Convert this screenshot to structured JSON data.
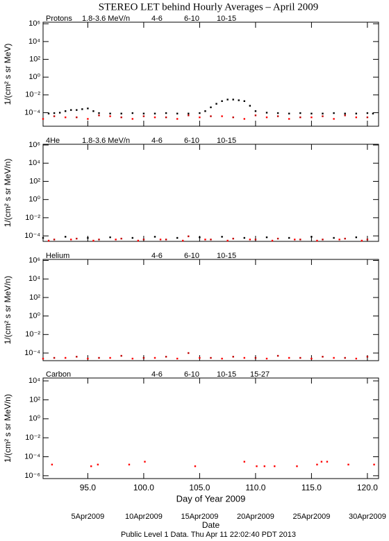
{
  "title": "STEREO LET behind Hourly Averages – April 2009",
  "footer": "Public Level 1 Data. Thu Apr 11 22:02:40 PDT 2013",
  "chart_data": [
    {
      "type": "scatter",
      "label": "Protons",
      "ylabel": "1/(cm² s sr MeV)",
      "log_y": true,
      "xlim": [
        91,
        121
      ],
      "ylim": [
        3e-06,
        1500000.0
      ],
      "yticks": [
        {
          "value": 1000000.0,
          "label": "10⁶"
        },
        {
          "value": 10000.0,
          "label": "10⁴"
        },
        {
          "value": 100,
          "label": "10²"
        },
        {
          "value": 1,
          "label": "10⁰"
        },
        {
          "value": 0.01,
          "label": "10⁻²"
        },
        {
          "value": 0.0001,
          "label": "10⁻⁴"
        }
      ],
      "series": [
        {
          "name": "1.8-3.6 MeV/n",
          "color": "#000000",
          "x": [
            91.5,
            92,
            92.5,
            93,
            93.5,
            94,
            94.5,
            95,
            95.5,
            96,
            97,
            98,
            99,
            100,
            101,
            102,
            103,
            104,
            105,
            105.5,
            106,
            106.5,
            107,
            107.5,
            108,
            108.5,
            109,
            109.5,
            110,
            111,
            112,
            113,
            114,
            115,
            116,
            117,
            118,
            119,
            120,
            120.5
          ],
          "values": [
            8e-05,
            9e-05,
            0.0001,
            0.00015,
            0.0002,
            0.0002,
            0.00025,
            0.0003,
            0.00015,
            9e-05,
            8e-05,
            8e-05,
            9e-05,
            8e-05,
            8e-05,
            9e-05,
            8e-05,
            8e-05,
            9e-05,
            0.00015,
            0.0004,
            0.001,
            0.002,
            0.003,
            0.003,
            0.0025,
            0.002,
            0.0006,
            0.00015,
            0.0001,
            9e-05,
            8e-05,
            9e-05,
            8e-05,
            8e-05,
            9e-05,
            8e-05,
            8e-05,
            9e-05,
            8e-05
          ]
        },
        {
          "name": "4-6",
          "color": "#c00000",
          "x": [
            92,
            94,
            96,
            98,
            100,
            102,
            104,
            106,
            108,
            110,
            112,
            114,
            116,
            118,
            120
          ],
          "values": [
            4e-05,
            3e-05,
            5e-05,
            3e-05,
            4e-05,
            3e-05,
            5e-05,
            4e-05,
            3e-05,
            5e-05,
            4e-05,
            3e-05,
            4e-05,
            5e-05,
            3e-05
          ]
        },
        {
          "name": "6-10",
          "color": "#ff0000",
          "x": [
            91,
            93,
            95,
            97,
            99,
            101,
            103,
            105,
            107,
            109,
            111,
            113,
            115,
            117,
            119
          ],
          "values": [
            2e-05,
            3e-05,
            2e-05,
            4e-05,
            2e-05,
            3e-05,
            2e-05,
            3e-05,
            4e-05,
            2e-05,
            3e-05,
            2e-05,
            3e-05,
            2e-05,
            3e-05
          ]
        },
        {
          "name": "10-15",
          "color": "#999999",
          "x": [],
          "values": []
        }
      ]
    },
    {
      "type": "scatter",
      "label": "4He",
      "ylabel": "1/(cm² s sr MeV/n)",
      "log_y": true,
      "xlim": [
        91,
        121
      ],
      "ylim": [
        2.5e-05,
        1200000.0
      ],
      "yticks": [
        {
          "value": 1000000.0,
          "label": "10⁶"
        },
        {
          "value": 10000.0,
          "label": "10⁴"
        },
        {
          "value": 100,
          "label": "10²"
        },
        {
          "value": 1,
          "label": "10⁰"
        },
        {
          "value": 0.01,
          "label": "10⁻²"
        },
        {
          "value": 0.0001,
          "label": "10⁻⁴"
        }
      ],
      "series": [
        {
          "name": "1.8-3.6 MeV/n",
          "color": "#000000",
          "x": [
            91,
            93,
            95,
            97,
            99,
            101,
            103,
            105,
            107,
            109,
            111,
            113,
            115,
            117,
            119
          ],
          "values": [
            6e-05,
            8e-05,
            6e-05,
            7e-05,
            6e-05,
            8e-05,
            6e-05,
            7e-05,
            8e-05,
            6e-05,
            7e-05,
            6e-05,
            8e-05,
            6e-05,
            7e-05
          ]
        },
        {
          "name": "4-6",
          "color": "#c00000",
          "x": [
            92,
            94,
            96,
            98,
            100,
            102,
            104,
            106,
            108,
            110,
            112,
            114,
            116,
            118,
            120
          ],
          "values": [
            4e-05,
            5e-05,
            4e-05,
            5e-05,
            4e-05,
            4e-05,
            9e-05,
            4e-05,
            5e-05,
            4e-05,
            5e-05,
            4e-05,
            4e-05,
            5e-05,
            4e-05
          ]
        },
        {
          "name": "6-10",
          "color": "#ff0000",
          "x": [
            91.5,
            93.5,
            95.5,
            97.5,
            99.5,
            101.5,
            103.5,
            105.5,
            107.5,
            109.5,
            111.5,
            113.5,
            115.5,
            117.5,
            119.5
          ],
          "values": [
            3e-05,
            4e-05,
            3e-05,
            4e-05,
            3e-05,
            4e-05,
            3e-05,
            4e-05,
            3e-05,
            4e-05,
            3e-05,
            4e-05,
            3e-05,
            4e-05,
            3e-05
          ]
        },
        {
          "name": "10-15",
          "color": "#999999",
          "x": [],
          "values": []
        }
      ]
    },
    {
      "type": "scatter",
      "label": "Helium",
      "ylabel": "1/(cm² s sr MeV/n)",
      "log_y": true,
      "xlim": [
        91,
        121
      ],
      "ylim": [
        1.5e-05,
        1300000.0
      ],
      "yticks": [
        {
          "value": 1000000.0,
          "label": "10⁶"
        },
        {
          "value": 10000.0,
          "label": "10⁴"
        },
        {
          "value": 100,
          "label": "10²"
        },
        {
          "value": 1,
          "label": "10⁰"
        },
        {
          "value": 0.01,
          "label": "10⁻²"
        },
        {
          "value": 0.0001,
          "label": "10⁻⁴"
        }
      ],
      "series": [
        {
          "name": "4-6",
          "color": "#c00000",
          "x": [
            92,
            94,
            96,
            98,
            100,
            102,
            104,
            106,
            108,
            110,
            112,
            114,
            116,
            118,
            120
          ],
          "values": [
            3e-05,
            4e-05,
            3e-05,
            5e-05,
            3e-05,
            4e-05,
            0.0001,
            3e-05,
            4e-05,
            3e-05,
            5e-05,
            3e-05,
            4e-05,
            3e-05,
            4e-05
          ]
        },
        {
          "name": "6-10",
          "color": "#ff0000",
          "x": [
            91,
            93,
            95,
            97,
            99,
            101,
            103,
            105,
            107,
            109,
            111,
            113,
            115,
            117,
            119
          ],
          "values": [
            2.5e-05,
            3e-05,
            2.5e-05,
            3e-05,
            2.5e-05,
            3e-05,
            2.5e-05,
            3e-05,
            2.5e-05,
            3e-05,
            2.5e-05,
            3e-05,
            2.5e-05,
            3e-05,
            2.5e-05
          ]
        },
        {
          "name": "10-15",
          "color": "#999999",
          "x": [],
          "values": []
        }
      ]
    },
    {
      "type": "scatter",
      "label": "Carbon",
      "ylabel": "1/(cm² s sr MeV/n)",
      "log_y": true,
      "xlabel": "Day of Year 2009",
      "date_label": "Date",
      "xlim": [
        91,
        121
      ],
      "ylim": [
        5e-07,
        20000.0
      ],
      "xticks": [
        {
          "value": 95,
          "label": "95.0"
        },
        {
          "value": 100,
          "label": "100.0"
        },
        {
          "value": 105,
          "label": "105.0"
        },
        {
          "value": 110,
          "label": "110.0"
        },
        {
          "value": 115,
          "label": "115.0"
        },
        {
          "value": 120,
          "label": "120.0"
        }
      ],
      "date_ticks": [
        {
          "value": 95,
          "label": "5Apr2009"
        },
        {
          "value": 100,
          "label": "10Apr2009"
        },
        {
          "value": 105,
          "label": "15Apr2009"
        },
        {
          "value": 110,
          "label": "20Apr2009"
        },
        {
          "value": 115,
          "label": "25Apr2009"
        },
        {
          "value": 120,
          "label": "30Apr2009"
        }
      ],
      "yticks": [
        {
          "value": 10000.0,
          "label": "10⁴"
        },
        {
          "value": 100,
          "label": "10²"
        },
        {
          "value": 1,
          "label": "10⁰"
        },
        {
          "value": 0.01,
          "label": "10⁻²"
        },
        {
          "value": 0.0001,
          "label": "10⁻⁴"
        },
        {
          "value": 1e-06,
          "label": "10⁻⁶"
        }
      ],
      "series": [
        {
          "name": "4-6",
          "color": "#c00000",
          "x": [],
          "values": []
        },
        {
          "name": "6-10",
          "color": "#ff0000",
          "x": [
            91.8,
            95.3,
            95.9,
            98.7,
            100.1,
            104.6,
            109.0,
            110.1,
            110.8,
            111.7,
            113.7,
            115.5,
            115.9,
            116.4,
            118.3,
            120.6
          ],
          "values": [
            1.5e-05,
            1e-05,
            1.5e-05,
            1.5e-05,
            3e-05,
            1e-05,
            3e-05,
            1e-05,
            1e-05,
            1e-05,
            1e-05,
            1.5e-05,
            3e-05,
            3e-05,
            1.5e-05,
            1.5e-05
          ]
        },
        {
          "name": "10-15",
          "color": "#999999",
          "x": [],
          "values": []
        },
        {
          "name": "15-27",
          "color": "#0000ff",
          "x": [],
          "values": []
        }
      ]
    }
  ]
}
